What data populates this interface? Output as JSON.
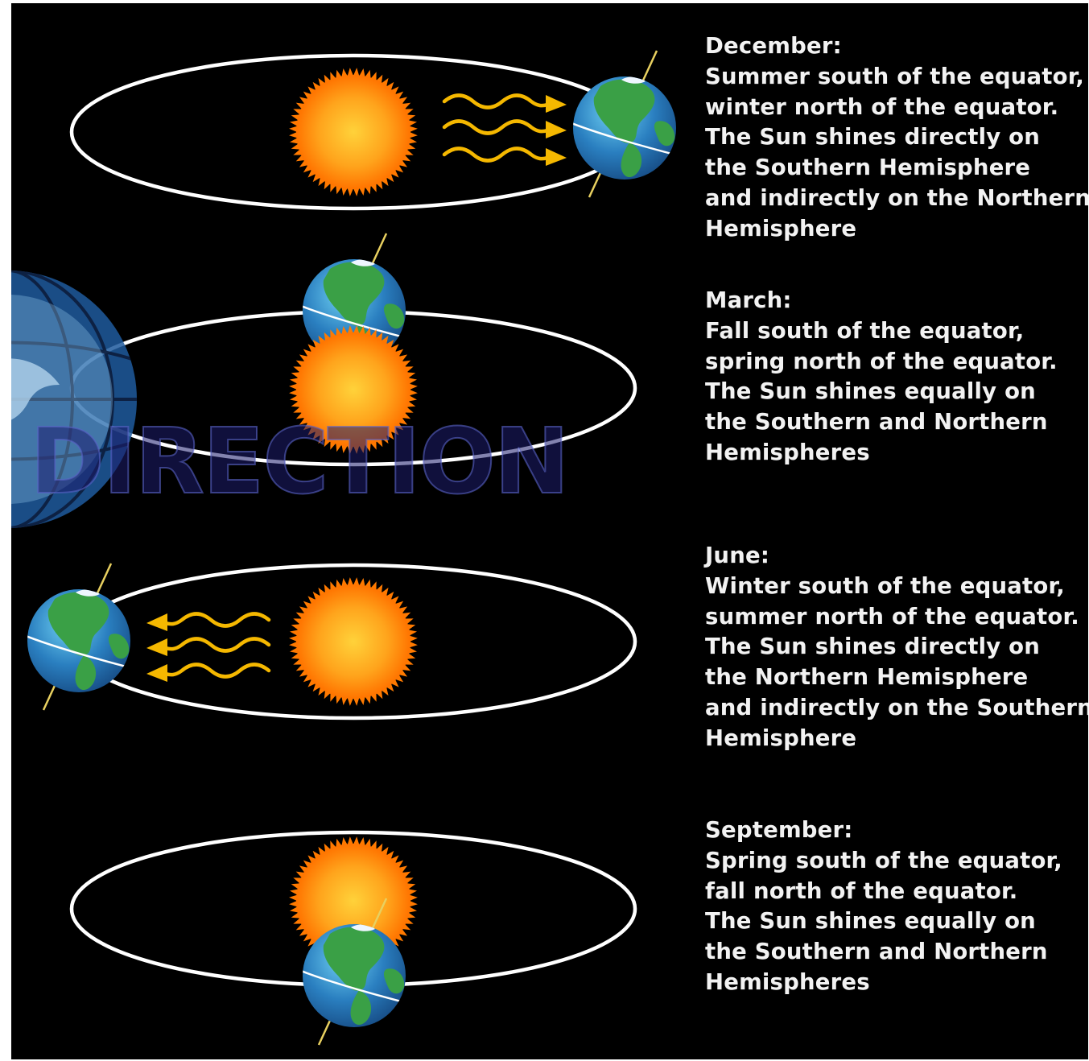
{
  "colors": {
    "background": "#000000",
    "orbit": "#ffffff",
    "sun_core": "#ffcc33",
    "sun_edge": "#ff7a00",
    "ocean": "#2a7fc0",
    "land": "#3aa046",
    "arrow": "#f5b800",
    "caption_text": "#f2f2f2",
    "watermark": "#1e3f8c"
  },
  "captions": [
    {
      "id": "december",
      "title": "December:",
      "lines": [
        "Summer south of the equator,",
        "winter north of the equator.",
        "The Sun shines directly on",
        "the Southern Hemisphere",
        "and indirectly on the Northern",
        "Hemisphere"
      ]
    },
    {
      "id": "march",
      "title": "March:",
      "lines": [
        "Fall south of the equator,",
        "spring north of the equator.",
        "The Sun shines equally on",
        "the Southern and Northern",
        "Hemispheres"
      ]
    },
    {
      "id": "june",
      "title": "June:",
      "lines": [
        "Winter south of the equator,",
        "summer north of the equator.",
        "The Sun shines directly on",
        "the Northern Hemisphere",
        "and indirectly on the Southern",
        "Hemisphere"
      ]
    },
    {
      "id": "september",
      "title": "September:",
      "lines": [
        "Spring south of the equator,",
        "fall north of the equator.",
        "The Sun shines equally on",
        "the Southern and Northern",
        "Hemispheres"
      ]
    }
  ],
  "watermark": {
    "text": "DIRECTION",
    "icon": "globe-logo-icon"
  }
}
